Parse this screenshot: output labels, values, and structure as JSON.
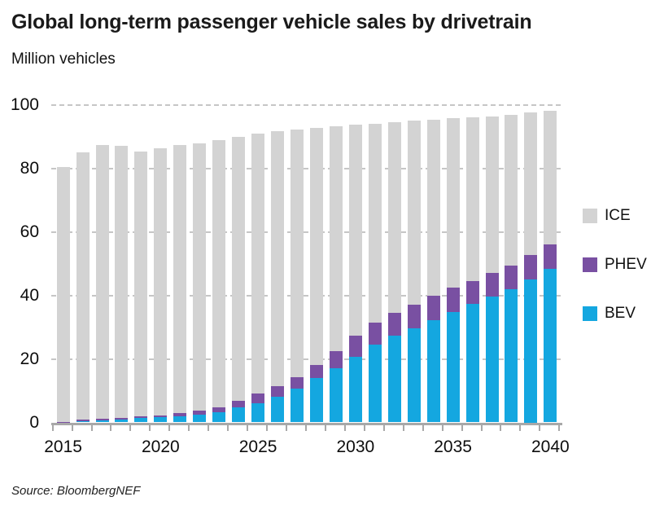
{
  "title": "Global long-term passenger vehicle sales by drivetrain",
  "subtitle": "Million vehicles",
  "source": "Source: BloombergNEF",
  "colors": {
    "ice": "#d3d3d3",
    "phev": "#7950a2",
    "bev": "#14a7e0",
    "grid": "#c6c6c6",
    "axis": "#a8a8a8"
  },
  "legend": [
    {
      "label": "ICE",
      "color_key": "ice"
    },
    {
      "label": "PHEV",
      "color_key": "phev"
    },
    {
      "label": "BEV",
      "color_key": "bev"
    }
  ],
  "chart_data": {
    "type": "bar",
    "stacked": true,
    "title": "Global long-term passenger vehicle sales by drivetrain",
    "ylabel": "Million vehicles",
    "ylim": [
      0,
      100
    ],
    "yticks": [
      0,
      20,
      40,
      60,
      80,
      100
    ],
    "grid": "dashed horizontal at 20,40,60,80,100",
    "legend_position": "right",
    "categories": [
      2015,
      2016,
      2017,
      2018,
      2019,
      2020,
      2021,
      2022,
      2023,
      2024,
      2025,
      2026,
      2027,
      2028,
      2029,
      2030,
      2031,
      2032,
      2033,
      2034,
      2035,
      2036,
      2037,
      2038,
      2039,
      2040
    ],
    "x_tick_labels": [
      "2015",
      "2020",
      "2025",
      "2030",
      "2035",
      "2040"
    ],
    "series": [
      {
        "name": "BEV",
        "color_key": "bev",
        "values": [
          0.1,
          0.3,
          0.6,
          1.0,
          1.3,
          1.6,
          2.0,
          2.4,
          3.3,
          4.8,
          6.0,
          8.1,
          10.7,
          14.0,
          17.1,
          20.7,
          24.5,
          27.2,
          29.7,
          32.2,
          34.8,
          37.3,
          39.6,
          42.0,
          45.0,
          48.4
        ]
      },
      {
        "name": "PHEV",
        "color_key": "phev",
        "values": [
          0.1,
          0.5,
          0.5,
          0.5,
          0.6,
          0.7,
          0.9,
          1.2,
          1.5,
          1.9,
          3.1,
          3.4,
          3.6,
          4.2,
          5.4,
          6.6,
          6.9,
          7.2,
          7.4,
          7.6,
          7.6,
          7.2,
          7.4,
          7.3,
          7.7,
          7.5
        ]
      },
      {
        "name": "ICE",
        "color_key": "ice",
        "values": [
          80.3,
          84.2,
          86.2,
          85.5,
          83.4,
          83.9,
          84.3,
          84.2,
          84.0,
          83.3,
          81.7,
          80.1,
          78.0,
          74.5,
          70.7,
          66.4,
          62.7,
          60.1,
          57.8,
          55.5,
          53.3,
          51.5,
          49.4,
          47.6,
          44.8,
          42.3
        ]
      }
    ]
  }
}
